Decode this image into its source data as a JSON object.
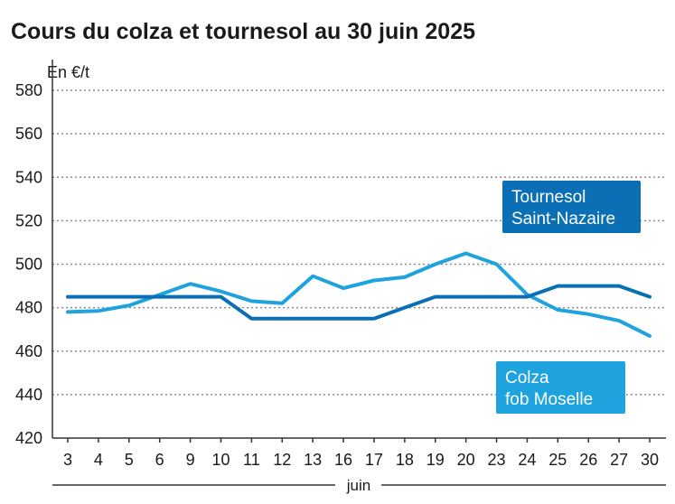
{
  "chart_data": {
    "type": "line",
    "title": "Cours du colza et tournesol au 30 juin 2025",
    "ylabel": "En €/t",
    "xlabel": "juin",
    "ylim": [
      420,
      580
    ],
    "yticks": [
      420,
      440,
      460,
      480,
      500,
      520,
      540,
      560,
      580
    ],
    "grid": true,
    "categories": [
      "3",
      "4",
      "5",
      "6",
      "9",
      "10",
      "11",
      "12",
      "13",
      "16",
      "17",
      "18",
      "19",
      "20",
      "23",
      "24",
      "25",
      "26",
      "27",
      "30"
    ],
    "series": [
      {
        "name": "Tournesol Saint-Nazaire",
        "label_lines": [
          "Tournesol",
          "Saint-Nazaire"
        ],
        "color": "#0a6fb5",
        "values": [
          485,
          485,
          485,
          485,
          485,
          485,
          475,
          475,
          475,
          475,
          475,
          480,
          485,
          485,
          485,
          485,
          490,
          490,
          490,
          485
        ]
      },
      {
        "name": "Colza fob Moselle",
        "label_lines": [
          "Colza",
          "fob Moselle"
        ],
        "color": "#1fa3de",
        "values": [
          478,
          478.5,
          481,
          486,
          491,
          487.5,
          483,
          482,
          494.5,
          489,
          492.5,
          494,
          500,
          505,
          500,
          486,
          479,
          477,
          474,
          467
        ]
      }
    ]
  }
}
